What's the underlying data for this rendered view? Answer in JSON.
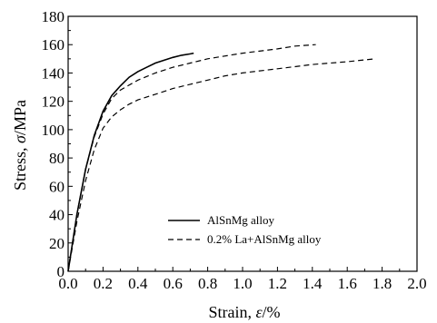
{
  "chart_data": {
    "type": "line",
    "title": "",
    "xlabel": {
      "prefix": "Strain, ",
      "symbol": "ε",
      "suffix": "/%"
    },
    "ylabel": {
      "prefix": "Stress, ",
      "symbol": "σ",
      "suffix": "/MPa"
    },
    "xlim": [
      0,
      2.0
    ],
    "ylim": [
      0,
      180
    ],
    "xticks": [
      0,
      0.2,
      0.4,
      0.6,
      0.8,
      1.0,
      1.2,
      1.4,
      1.6,
      1.8,
      2.0
    ],
    "xtick_labels": [
      "0.0",
      "0.2",
      "0.4",
      "0.6",
      "0.8",
      "1.0",
      "1.2",
      "1.4",
      "1.6",
      "1.8",
      "2.0"
    ],
    "yticks": [
      0,
      20,
      40,
      60,
      80,
      100,
      120,
      140,
      160,
      180
    ],
    "ytick_labels": [
      "0",
      "20",
      "40",
      "60",
      "80",
      "100",
      "120",
      "140",
      "160",
      "180"
    ],
    "grid": false,
    "legend_position": "lower-right",
    "series": [
      {
        "name": "AlSnMg alloy",
        "style": "solid",
        "color": "#000000",
        "x": [
          0,
          0.05,
          0.1,
          0.15,
          0.2,
          0.25,
          0.3,
          0.35,
          0.4,
          0.45,
          0.5,
          0.55,
          0.6,
          0.65,
          0.7,
          0.72
        ],
        "y": [
          0,
          40,
          72,
          96,
          113,
          124,
          131,
          137,
          141,
          144,
          147,
          149,
          151,
          152.5,
          153.5,
          154
        ]
      },
      {
        "name": "",
        "style": "dashed",
        "color": "#000000",
        "x": [
          0,
          0.05,
          0.1,
          0.15,
          0.2,
          0.25,
          0.3,
          0.4,
          0.5,
          0.6,
          0.7,
          0.8,
          1.0,
          1.2,
          1.3,
          1.42
        ],
        "y": [
          0,
          40,
          72,
          95,
          111,
          122,
          128,
          135,
          140,
          144,
          147,
          150,
          154,
          157,
          159,
          160
        ]
      },
      {
        "name": "0.2% La+AlSnMg alloy",
        "style": "dashed",
        "color": "#000000",
        "x": [
          0,
          0.05,
          0.1,
          0.15,
          0.2,
          0.25,
          0.3,
          0.35,
          0.4,
          0.5,
          0.6,
          0.7,
          0.8,
          0.9,
          1.0,
          1.2,
          1.4,
          1.6,
          1.76
        ],
        "y": [
          0,
          35,
          64,
          86,
          101,
          109,
          114,
          118,
          121,
          125,
          129,
          132,
          135,
          138,
          140,
          143,
          146,
          148,
          150
        ]
      }
    ]
  }
}
